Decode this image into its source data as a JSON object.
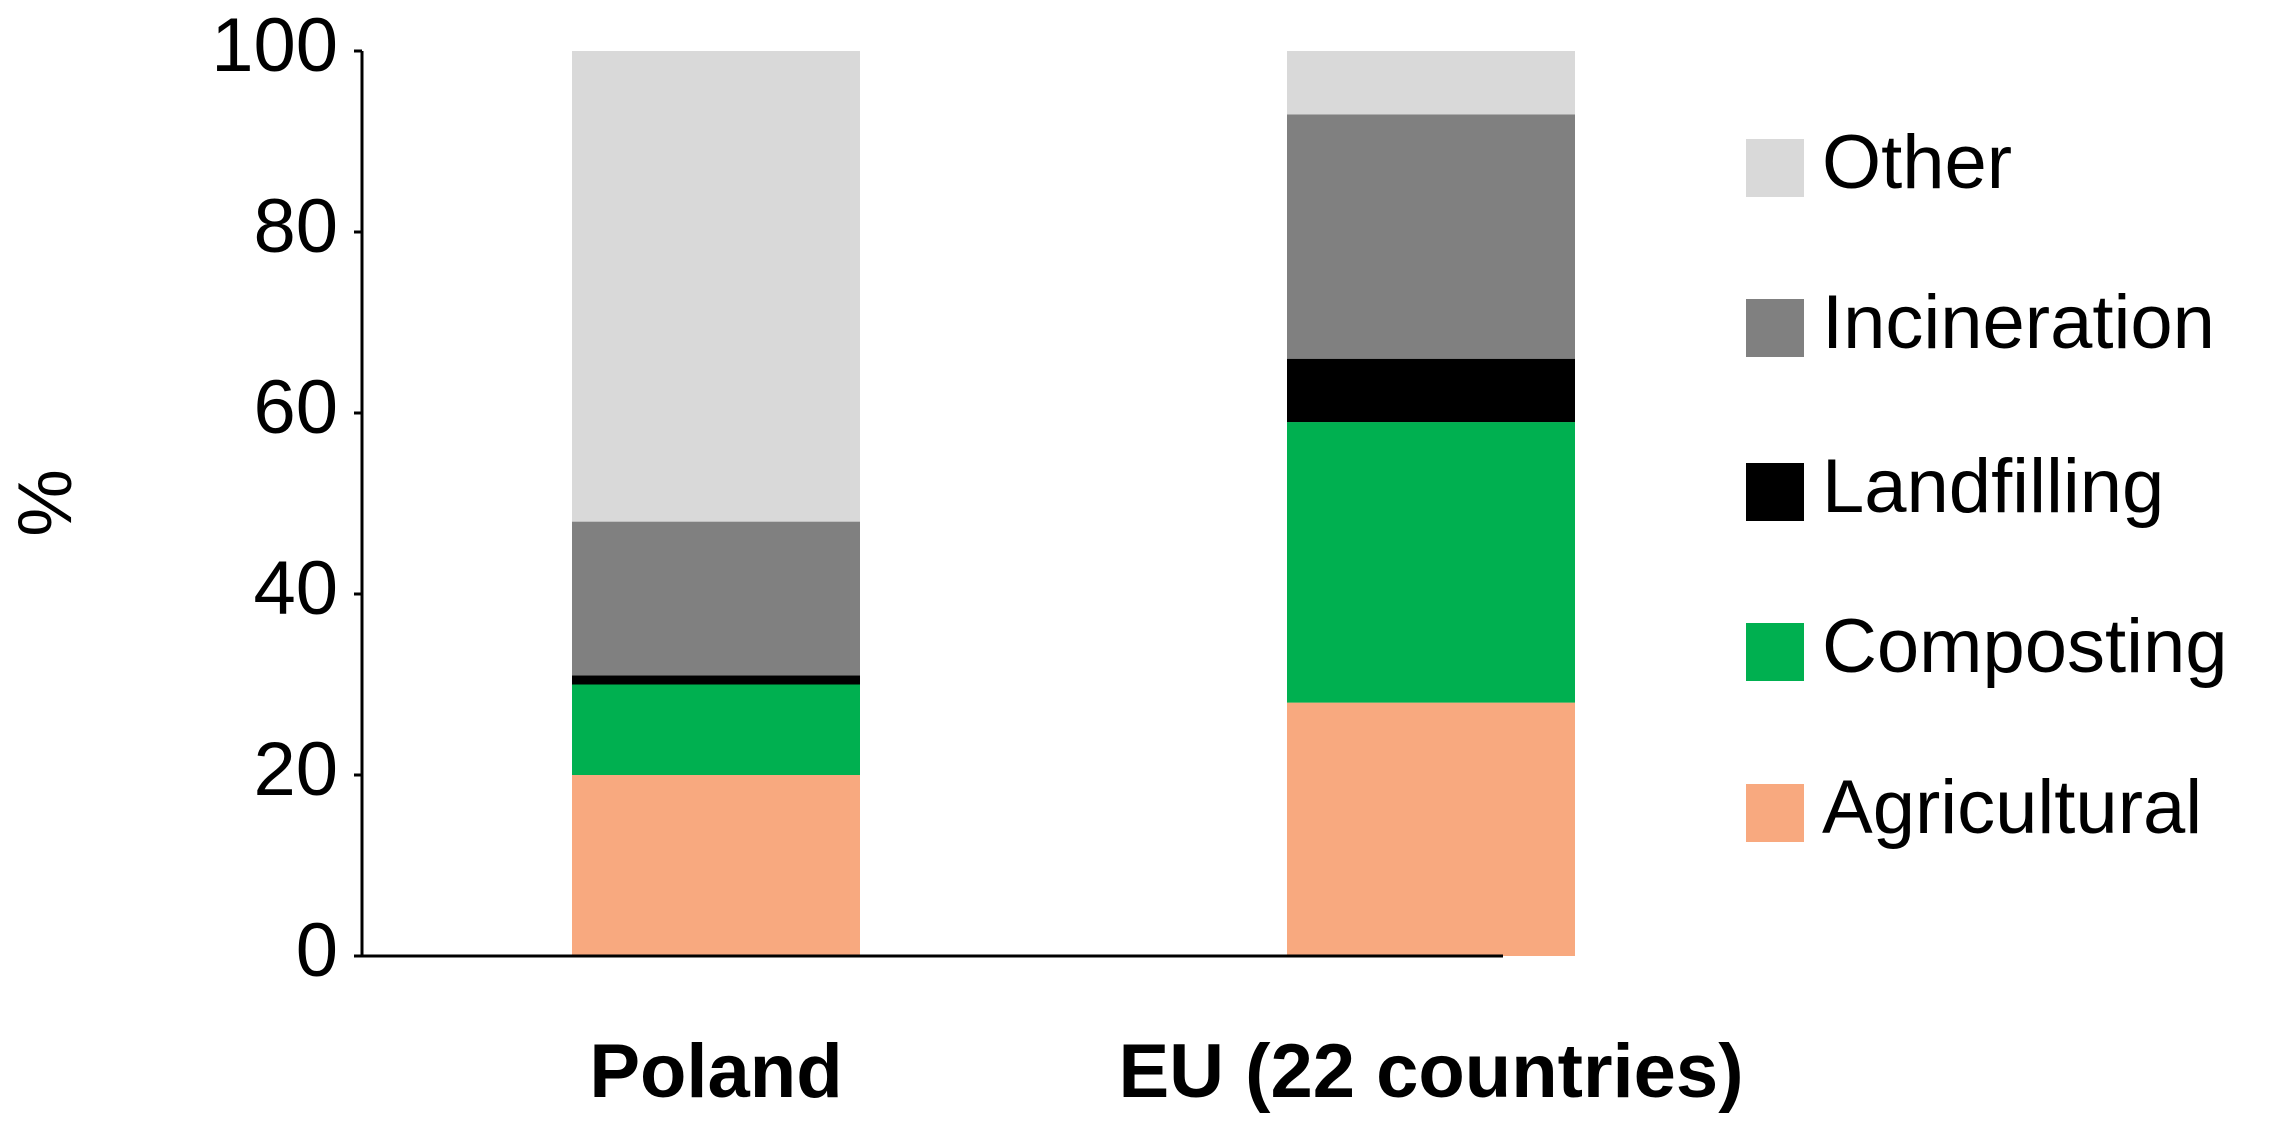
{
  "chart_data": {
    "type": "stacked_bar",
    "y_label": "%",
    "categories": [
      "Poland",
      "EU (22 countries)"
    ],
    "series": [
      {
        "name": "Agricultural",
        "color": "#f8a97f",
        "values": [
          20,
          28
        ]
      },
      {
        "name": "Composting",
        "color": "#00b050",
        "values": [
          10,
          31
        ]
      },
      {
        "name": "Landfilling",
        "color": "#000000",
        "values": [
          1,
          7
        ]
      },
      {
        "name": "Incineration",
        "color": "#808080",
        "values": [
          17,
          27
        ]
      },
      {
        "name": "Other",
        "color": "#d9d9d9",
        "values": [
          52,
          7
        ]
      }
    ],
    "ylim": [
      0,
      100
    ],
    "yticks": [
      0,
      20,
      40,
      60,
      80,
      100
    ],
    "grid": false,
    "legend": "right"
  }
}
